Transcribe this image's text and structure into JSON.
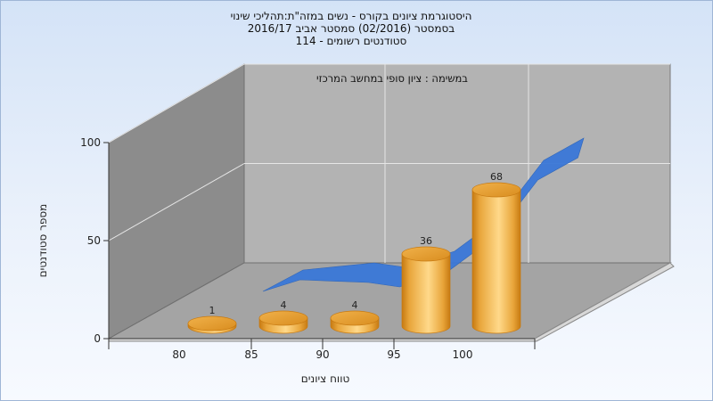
{
  "header": {
    "line1": "היסטוגרמת ציונים בקורס - נשים במזה\"ת:תהליכי שינוי",
    "line2": "בסמסטר  (02/2016)  סמסטר אביב 2016/17",
    "line3": "סטודנטים רשומים - 114"
  },
  "chart_data": {
    "type": "bar",
    "annotation": "במשימה : ציון סופי במחשב המרכזי",
    "xlabel": "טווח ציונים",
    "ylabel": "מספר סטודנטים",
    "ylim": [
      0,
      100
    ],
    "yticks": [
      "0",
      "50",
      "100"
    ],
    "x_tick_labels": [
      "80",
      "85",
      "90",
      "95",
      "100"
    ],
    "bars": [
      {
        "value": 1,
        "label": "1"
      },
      {
        "value": 4,
        "label": "4"
      },
      {
        "value": 4,
        "label": "4"
      },
      {
        "value": 36,
        "label": "36"
      },
      {
        "value": 68,
        "label": "68"
      }
    ],
    "cumulative_area": [
      2,
      16,
      16,
      39,
      100
    ],
    "colors": {
      "bar": "#e8a53a",
      "bar_light": "#ffd98a",
      "bar_dark": "#c77a12",
      "area": "#3a78d8",
      "wall_back": "#b3b3b3",
      "wall_side": "#8c8c8c",
      "floor": "#a4a4a4"
    }
  }
}
